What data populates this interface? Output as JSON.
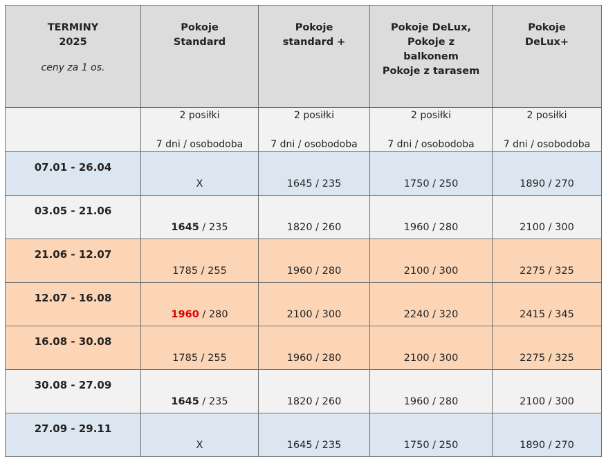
{
  "header": {
    "col0_title_line1": "TERMINY",
    "col0_title_line2": "2025",
    "col0_note": "ceny za 1 os.",
    "columns": [
      [
        "Pokoje",
        "Standard"
      ],
      [
        "Pokoje",
        "standard +"
      ],
      [
        "Pokoje DeLux,",
        "Pokoje z",
        "balkonem",
        "Pokoje z tarasem"
      ],
      [
        "Pokoje",
        "DeLux+"
      ]
    ]
  },
  "subheader": {
    "meals": "2 posiłki",
    "stay": "7 dni / osobodoba"
  },
  "rows": [
    {
      "date": "07.01 - 26.04",
      "color": "#dce6f1",
      "cells": [
        {
          "main": "X",
          "rest": ""
        },
        {
          "main": "1645",
          "rest": " / 235"
        },
        {
          "main": "1750",
          "rest": " / 250"
        },
        {
          "main": "1890",
          "rest": " / 270"
        }
      ]
    },
    {
      "date": "03.05 - 21.06",
      "color": "#f2f2f2",
      "cells": [
        {
          "main": "1645",
          "rest": " / 235"
        },
        {
          "main": "1820",
          "rest": " / 260"
        },
        {
          "main": "1960",
          "rest": " / 280"
        },
        {
          "main": "2100",
          "rest": " / 300"
        }
      ]
    },
    {
      "date": "21.06 - 12.07",
      "color": "#fbd5b5",
      "cells": [
        {
          "main": "1785",
          "rest": " / 255"
        },
        {
          "main": "1960",
          "rest": " / 280"
        },
        {
          "main": "2100",
          "rest": " / 300"
        },
        {
          "main": "2275",
          "rest": " / 325"
        }
      ]
    },
    {
      "date": "12.07 - 16.08",
      "color": "#fbd5b5",
      "cells": [
        {
          "main": "1960",
          "rest": " / 280"
        },
        {
          "main": "2100",
          "rest": " / 300"
        },
        {
          "main": "2240",
          "rest": " / 320"
        },
        {
          "main": "2415",
          "rest": " / 345"
        }
      ]
    },
    {
      "date": "16.08 - 30.08",
      "color": "#fbd5b5",
      "cells": [
        {
          "main": "1785",
          "rest": " / 255"
        },
        {
          "main": "1960",
          "rest": " / 280"
        },
        {
          "main": "2100",
          "rest": " / 300"
        },
        {
          "main": "2275",
          "rest": " / 325"
        }
      ]
    },
    {
      "date": "30.08 - 27.09",
      "color": "#f2f2f2",
      "cells": [
        {
          "main": "1645",
          "rest": " / 235"
        },
        {
          "main": "1820",
          "rest": " / 260"
        },
        {
          "main": "1960",
          "rest": " / 280"
        },
        {
          "main": "2100",
          "rest": " / 300"
        }
      ]
    },
    {
      "date": "27.09 - 29.11",
      "color": "#dce6f1",
      "cells": [
        {
          "main": "X",
          "rest": ""
        },
        {
          "main": "1645",
          "rest": " / 235"
        },
        {
          "main": "1750",
          "rest": " / 250"
        },
        {
          "main": "1890",
          "rest": " / 270"
        }
      ]
    }
  ],
  "emphasis": {
    "bold_color": "#222222",
    "highlight_color": "#e00000"
  }
}
